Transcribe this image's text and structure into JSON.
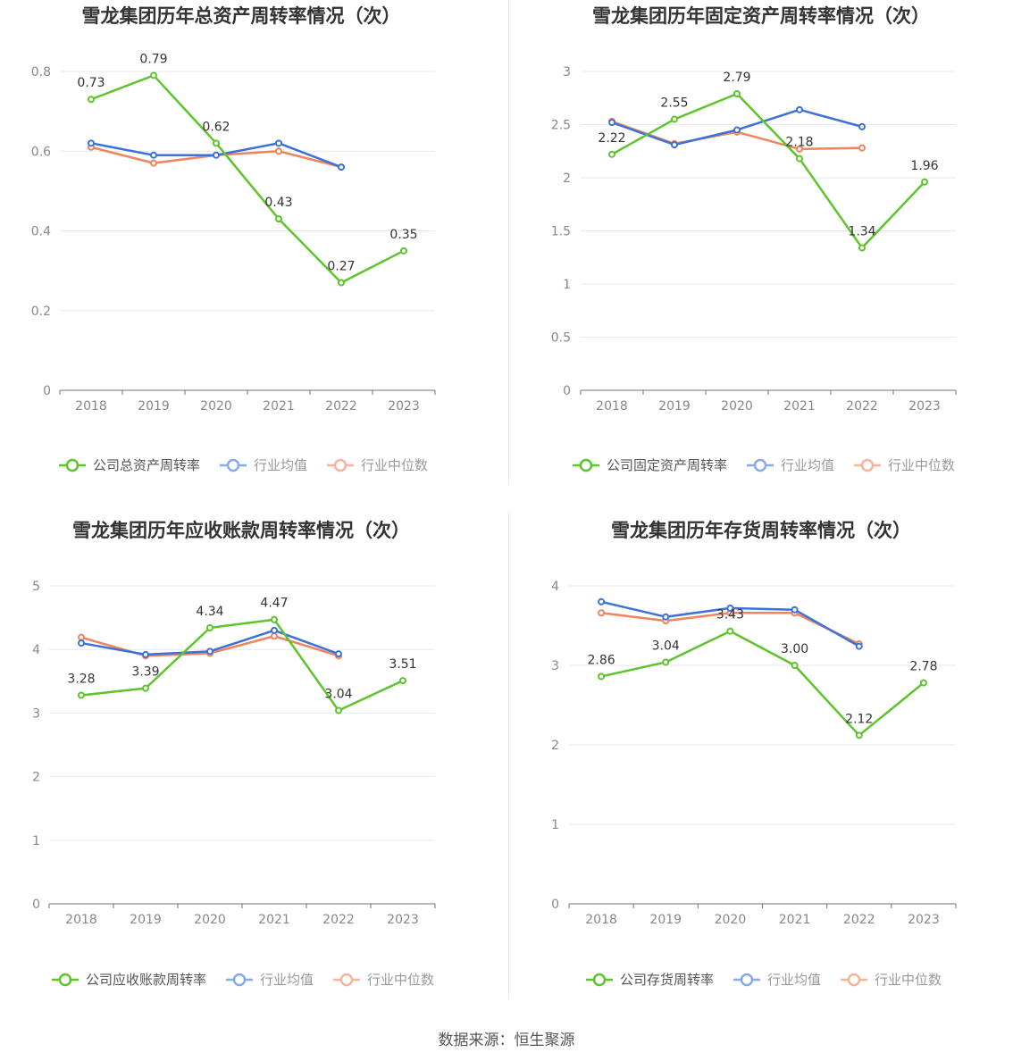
{
  "source_text": "数据来源：恒生聚源",
  "colors": {
    "company": "#5dc42b",
    "avg": "#3b72d9",
    "median": "#f0845c"
  },
  "chart_data": [
    {
      "type": "line",
      "title": "雪龙集团历年总资产周转率情况（次）",
      "categories": [
        "2018",
        "2019",
        "2020",
        "2021",
        "2022",
        "2023"
      ],
      "ylim": [
        0,
        0.8
      ],
      "yticks": [
        0,
        0.2,
        0.4,
        0.6,
        0.8
      ],
      "ytick_labels": [
        "0",
        "0.2",
        "0.4",
        "0.6",
        "0.8"
      ],
      "series": [
        {
          "name": "公司总资产周转率",
          "key": "company",
          "values": [
            0.73,
            0.79,
            0.62,
            0.43,
            0.27,
            0.35
          ],
          "labels": [
            "0.73",
            "0.79",
            "0.62",
            "0.43",
            "0.27",
            "0.35"
          ]
        },
        {
          "name": "行业均值",
          "key": "avg",
          "values": [
            0.62,
            0.59,
            0.59,
            0.62,
            0.56,
            null
          ]
        },
        {
          "name": "行业中位数",
          "key": "median",
          "values": [
            0.61,
            0.57,
            0.59,
            0.6,
            0.56,
            null
          ]
        }
      ]
    },
    {
      "type": "line",
      "title": "雪龙集团历年固定资产周转率情况（次）",
      "categories": [
        "2018",
        "2019",
        "2020",
        "2021",
        "2022",
        "2023"
      ],
      "ylim": [
        0,
        3
      ],
      "yticks": [
        0,
        0.5,
        1,
        1.5,
        2,
        2.5,
        3
      ],
      "ytick_labels": [
        "0",
        "0.5",
        "1",
        "1.5",
        "2",
        "2.5",
        "3"
      ],
      "series": [
        {
          "name": "公司固定资产周转率",
          "key": "company",
          "values": [
            2.22,
            2.55,
            2.79,
            2.18,
            1.34,
            1.96
          ],
          "labels": [
            "2.22",
            "2.55",
            "2.79",
            "2.18",
            "1.34",
            "1.96"
          ]
        },
        {
          "name": "行业均值",
          "key": "avg",
          "values": [
            2.52,
            2.31,
            2.45,
            2.64,
            2.48,
            null
          ]
        },
        {
          "name": "行业中位数",
          "key": "median",
          "values": [
            2.53,
            2.32,
            2.43,
            2.27,
            2.28,
            null
          ]
        }
      ]
    },
    {
      "type": "line",
      "title": "雪龙集团历年应收账款周转率情况（次）",
      "categories": [
        "2018",
        "2019",
        "2020",
        "2021",
        "2022",
        "2023"
      ],
      "ylim": [
        0,
        5
      ],
      "yticks": [
        0,
        1,
        2,
        3,
        4,
        5
      ],
      "ytick_labels": [
        "0",
        "1",
        "2",
        "3",
        "4",
        "5"
      ],
      "series": [
        {
          "name": "公司应收账款周转率",
          "key": "company",
          "values": [
            3.28,
            3.39,
            4.34,
            4.47,
            3.04,
            3.51
          ],
          "labels": [
            "3.28",
            "3.39",
            "4.34",
            "4.47",
            "3.04",
            "3.51"
          ]
        },
        {
          "name": "行业均值",
          "key": "avg",
          "values": [
            4.1,
            3.92,
            3.97,
            4.3,
            3.93,
            null
          ]
        },
        {
          "name": "行业中位数",
          "key": "median",
          "values": [
            4.19,
            3.9,
            3.94,
            4.21,
            3.9,
            null
          ]
        }
      ]
    },
    {
      "type": "line",
      "title": "雪龙集团历年存货周转率情况（次）",
      "categories": [
        "2018",
        "2019",
        "2020",
        "2021",
        "2022",
        "2023"
      ],
      "ylim": [
        0,
        4
      ],
      "yticks": [
        0,
        1,
        2,
        3,
        4
      ],
      "ytick_labels": [
        "0",
        "1",
        "2",
        "3",
        "4"
      ],
      "series": [
        {
          "name": "公司存货周转率",
          "key": "company",
          "values": [
            2.86,
            3.04,
            3.43,
            3.0,
            2.12,
            2.78
          ],
          "labels": [
            "2.86",
            "3.04",
            "3.43",
            "3.00",
            "2.12",
            "2.78"
          ]
        },
        {
          "name": "行业均值",
          "key": "avg",
          "values": [
            3.8,
            3.61,
            3.72,
            3.7,
            3.24,
            null
          ]
        },
        {
          "name": "行业中位数",
          "key": "median",
          "values": [
            3.66,
            3.56,
            3.66,
            3.66,
            3.27,
            null
          ]
        }
      ]
    }
  ]
}
